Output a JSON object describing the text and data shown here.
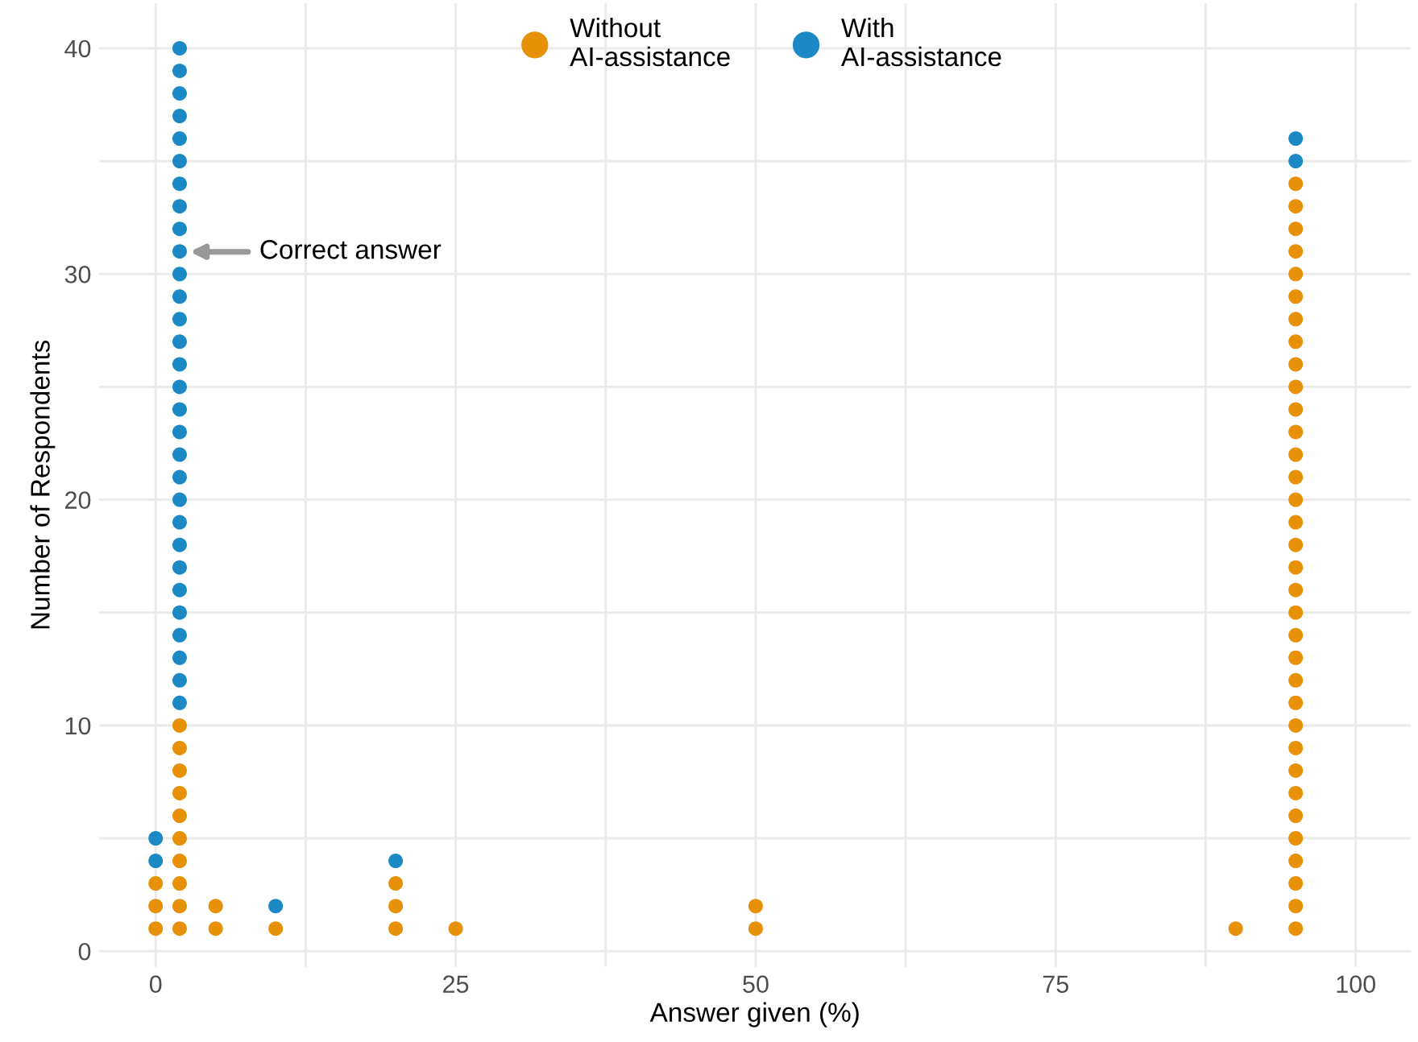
{
  "chart_data": {
    "type": "scatter",
    "xlabel": "Answer given (%)",
    "ylabel": "Number of Respondents",
    "series": [
      {
        "name": "Without\nAI-assistance",
        "color": "#e69108",
        "x": [
          0,
          0,
          0,
          2,
          2,
          2,
          2,
          2,
          2,
          2,
          2,
          2,
          2,
          5,
          5,
          10,
          20,
          20,
          20,
          25,
          50,
          50,
          90,
          95,
          95,
          95,
          95,
          95,
          95,
          95,
          95,
          95,
          95,
          95,
          95,
          95,
          95,
          95,
          95,
          95,
          95,
          95,
          95,
          95,
          95,
          95,
          95,
          95,
          95,
          95,
          95,
          95,
          95,
          95,
          95,
          95,
          95
        ],
        "values": [
          1,
          2,
          3,
          1,
          2,
          3,
          4,
          5,
          6,
          7,
          8,
          9,
          10,
          1,
          2,
          1,
          1,
          2,
          3,
          1,
          1,
          2,
          1,
          1,
          2,
          3,
          4,
          5,
          6,
          7,
          8,
          9,
          10,
          11,
          12,
          13,
          14,
          15,
          16,
          17,
          18,
          19,
          20,
          21,
          22,
          23,
          24,
          25,
          26,
          27,
          28,
          29,
          30,
          31,
          32,
          33,
          34
        ]
      },
      {
        "name": "With\nAI-assistance",
        "color": "#1b8ac4",
        "x": [
          0,
          0,
          2,
          2,
          2,
          2,
          2,
          2,
          2,
          2,
          2,
          2,
          2,
          2,
          2,
          2,
          2,
          2,
          2,
          2,
          2,
          2,
          2,
          2,
          2,
          2,
          2,
          2,
          2,
          2,
          2,
          2,
          10,
          20,
          95,
          95
        ],
        "values": [
          4,
          5,
          11,
          12,
          13,
          14,
          15,
          16,
          17,
          18,
          19,
          20,
          21,
          22,
          23,
          24,
          25,
          26,
          27,
          28,
          29,
          30,
          31,
          32,
          33,
          34,
          35,
          36,
          37,
          38,
          39,
          40,
          2,
          4,
          35,
          36
        ]
      }
    ],
    "xlim": [
      -4.7,
      104.6
    ],
    "ylim": [
      -0.7,
      42
    ],
    "xticks": [
      0,
      {
        "value": 12.5,
        "label": null
      },
      25,
      {
        "value": 37.5,
        "label": null
      },
      50,
      {
        "value": 62.5,
        "label": null
      },
      75,
      {
        "value": 87.5,
        "label": null
      },
      100
    ],
    "yticks": [
      0,
      {
        "value": 5,
        "label": null
      },
      10,
      {
        "value": 15,
        "label": null
      },
      20,
      {
        "value": 25,
        "label": null
      },
      30,
      {
        "value": 35,
        "label": null
      },
      40
    ],
    "grid": true,
    "legend": "top",
    "marker": "circle",
    "annotations": [
      "Correct answer"
    ]
  }
}
